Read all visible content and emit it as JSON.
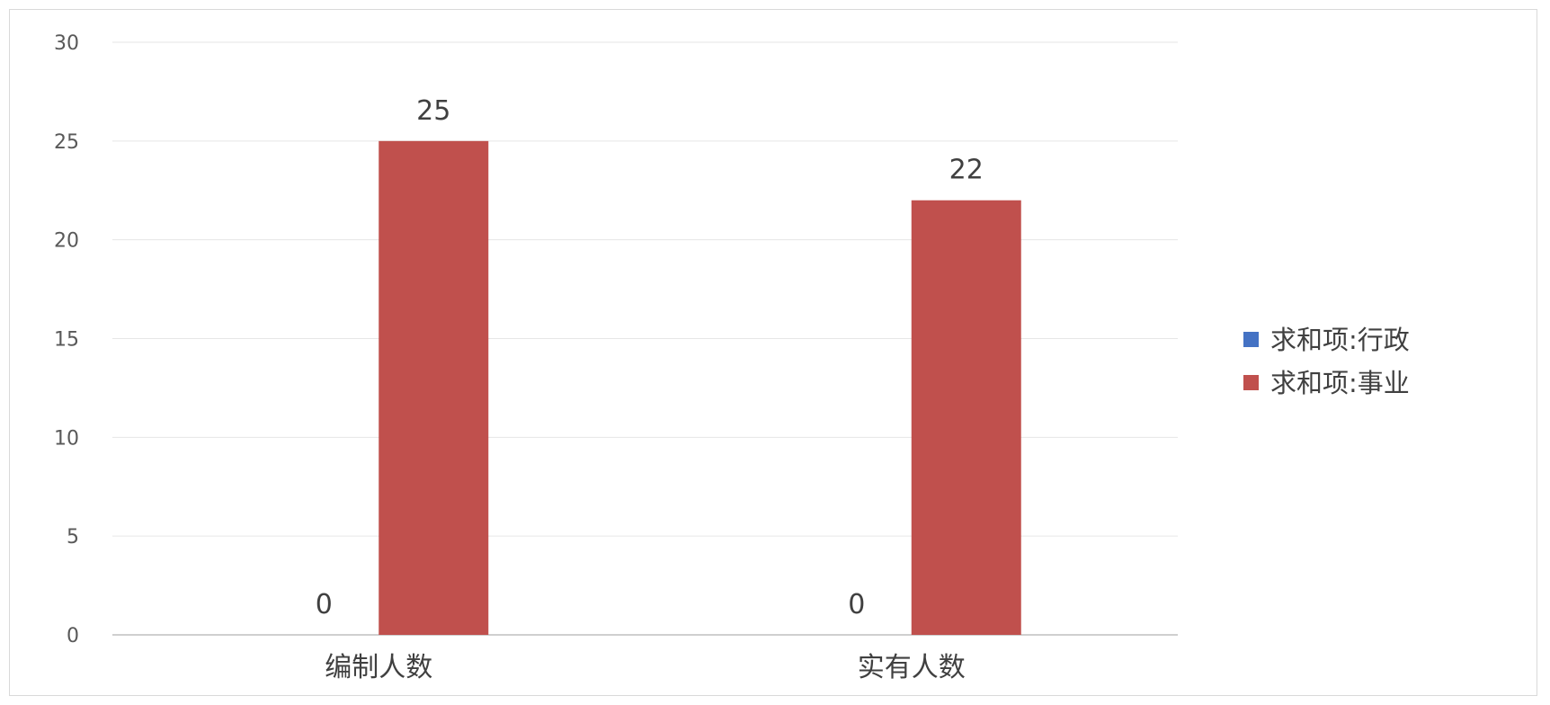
{
  "chart_data": {
    "type": "bar",
    "categories": [
      "编制人数",
      "实有人数"
    ],
    "series": [
      {
        "name": "求和项:行政",
        "values": [
          0,
          0
        ],
        "color": "#4472C4"
      },
      {
        "name": "求和项:事业",
        "values": [
          25,
          22
        ],
        "color": "#C0504D"
      }
    ],
    "ylim": [
      0,
      30
    ],
    "yticks": [
      0,
      5,
      10,
      15,
      20,
      25,
      30
    ],
    "grid": true,
    "legend": "right",
    "data_labels": true,
    "title": "",
    "xlabel": "",
    "ylabel": ""
  }
}
